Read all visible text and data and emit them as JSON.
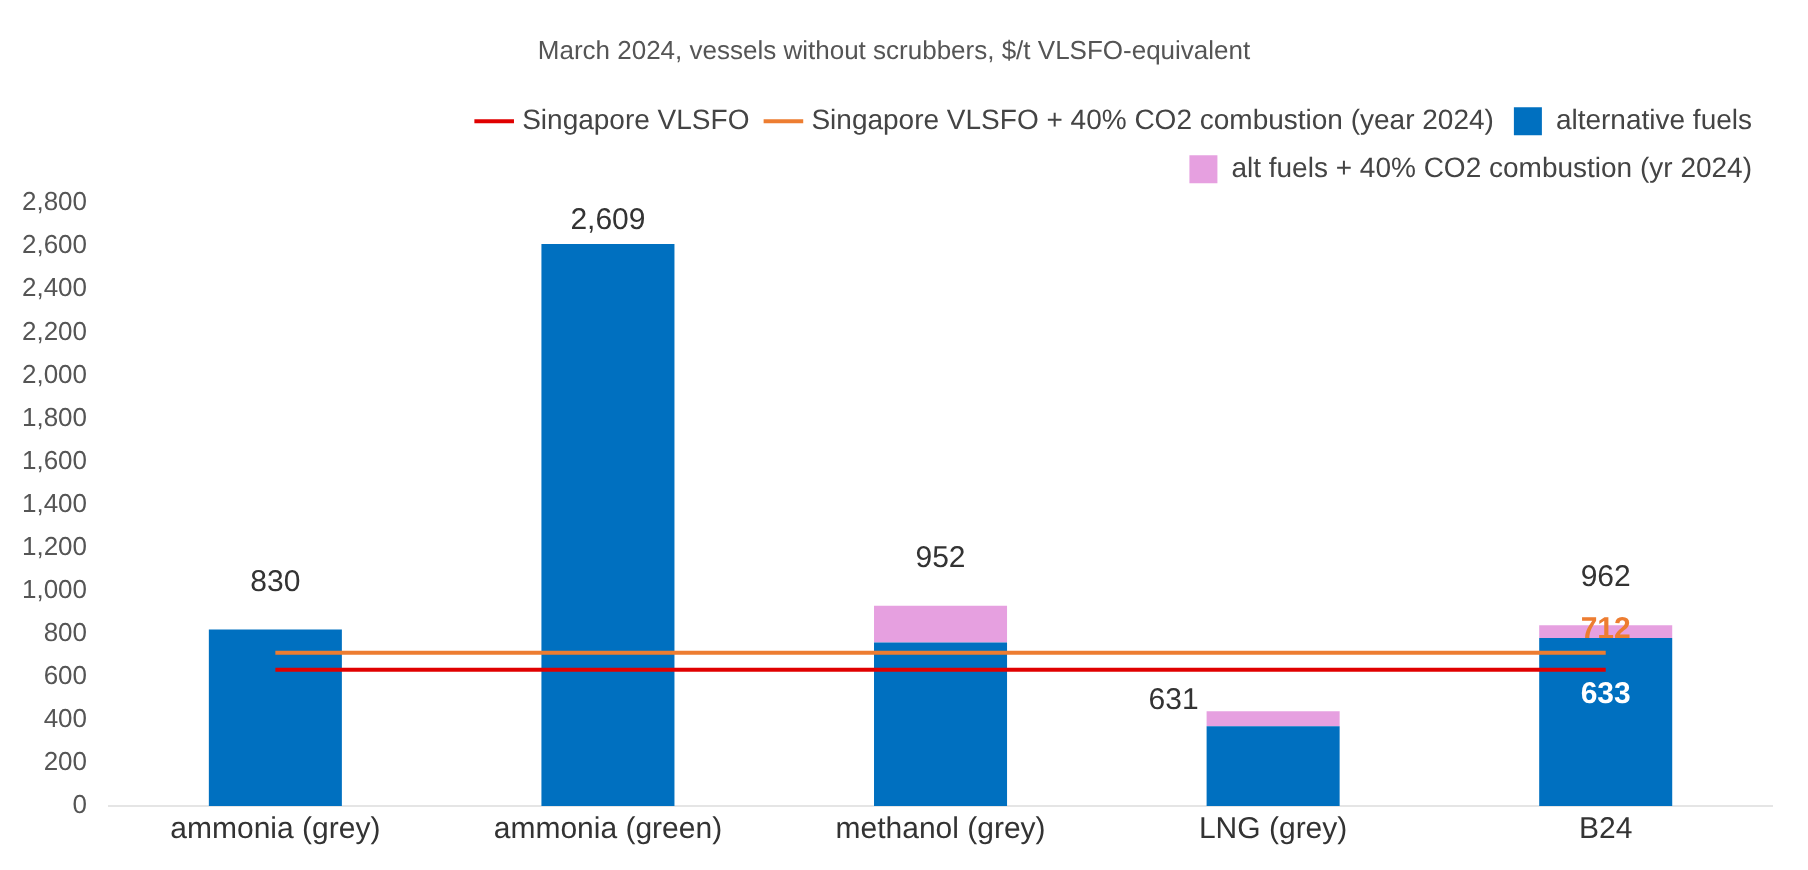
{
  "chart_data": {
    "type": "bar",
    "title": "March 2024, vessels without scrubbers, $/t VLSFO-equivalent",
    "categories": [
      "ammonia (grey)",
      "ammonia (green)",
      "methanol (grey)",
      "LNG (grey)",
      "B24"
    ],
    "stacked": true,
    "series": [
      {
        "name": "alternative fuels",
        "color": "#0070c0",
        "values": [
          820,
          2610,
          760,
          370,
          780
        ]
      },
      {
        "name": "alt fuels + 40% CO2 combustion (yr 2024)",
        "color": "#e6a0e0",
        "values": [
          null,
          null,
          170,
          70,
          60
        ]
      },
      {
        "name": "Singapore VLSFO",
        "type": "line",
        "color": "#e00000",
        "values": [
          633,
          633,
          633,
          633,
          633
        ],
        "value_labels": [
          null,
          null,
          null,
          null,
          "633"
        ]
      },
      {
        "name": "Singapore VLSFO + 40% CO2 combustion (year 2024)",
        "type": "line",
        "color": "#ed7d31",
        "values": [
          712,
          712,
          712,
          712,
          712
        ],
        "value_labels": [
          null,
          null,
          null,
          null,
          "712"
        ]
      }
    ],
    "annotations": [
      {
        "text": "830",
        "x": "ammonia (grey)",
        "y": 820
      },
      {
        "text": "2,609",
        "x": "ammonia (green)",
        "y": 2610
      },
      {
        "text": "952",
        "x": "methanol (grey)",
        "y": 930
      },
      {
        "text": "631",
        "x": "LNG (grey)",
        "y": 440
      },
      {
        "text": "962",
        "x": "B24",
        "y": 840
      }
    ],
    "ylim": [
      0,
      2800
    ],
    "yticks": [
      0,
      200,
      400,
      600,
      800,
      {
        "value": 1000,
        "label": "1,000"
      },
      {
        "value": 1200,
        "label": "1,200"
      },
      {
        "value": 1400,
        "label": "1,400"
      },
      {
        "value": 1600,
        "label": "1,600"
      },
      {
        "value": 1800,
        "label": "1,800"
      },
      {
        "value": 2000,
        "label": "2,000"
      },
      {
        "value": 2200,
        "label": "2,200"
      },
      {
        "value": 2400,
        "label": "2,400"
      },
      {
        "value": 2600,
        "label": "2,600"
      },
      {
        "value": 2800,
        "label": "2,800"
      }
    ],
    "grid": false,
    "legend": "top right"
  }
}
